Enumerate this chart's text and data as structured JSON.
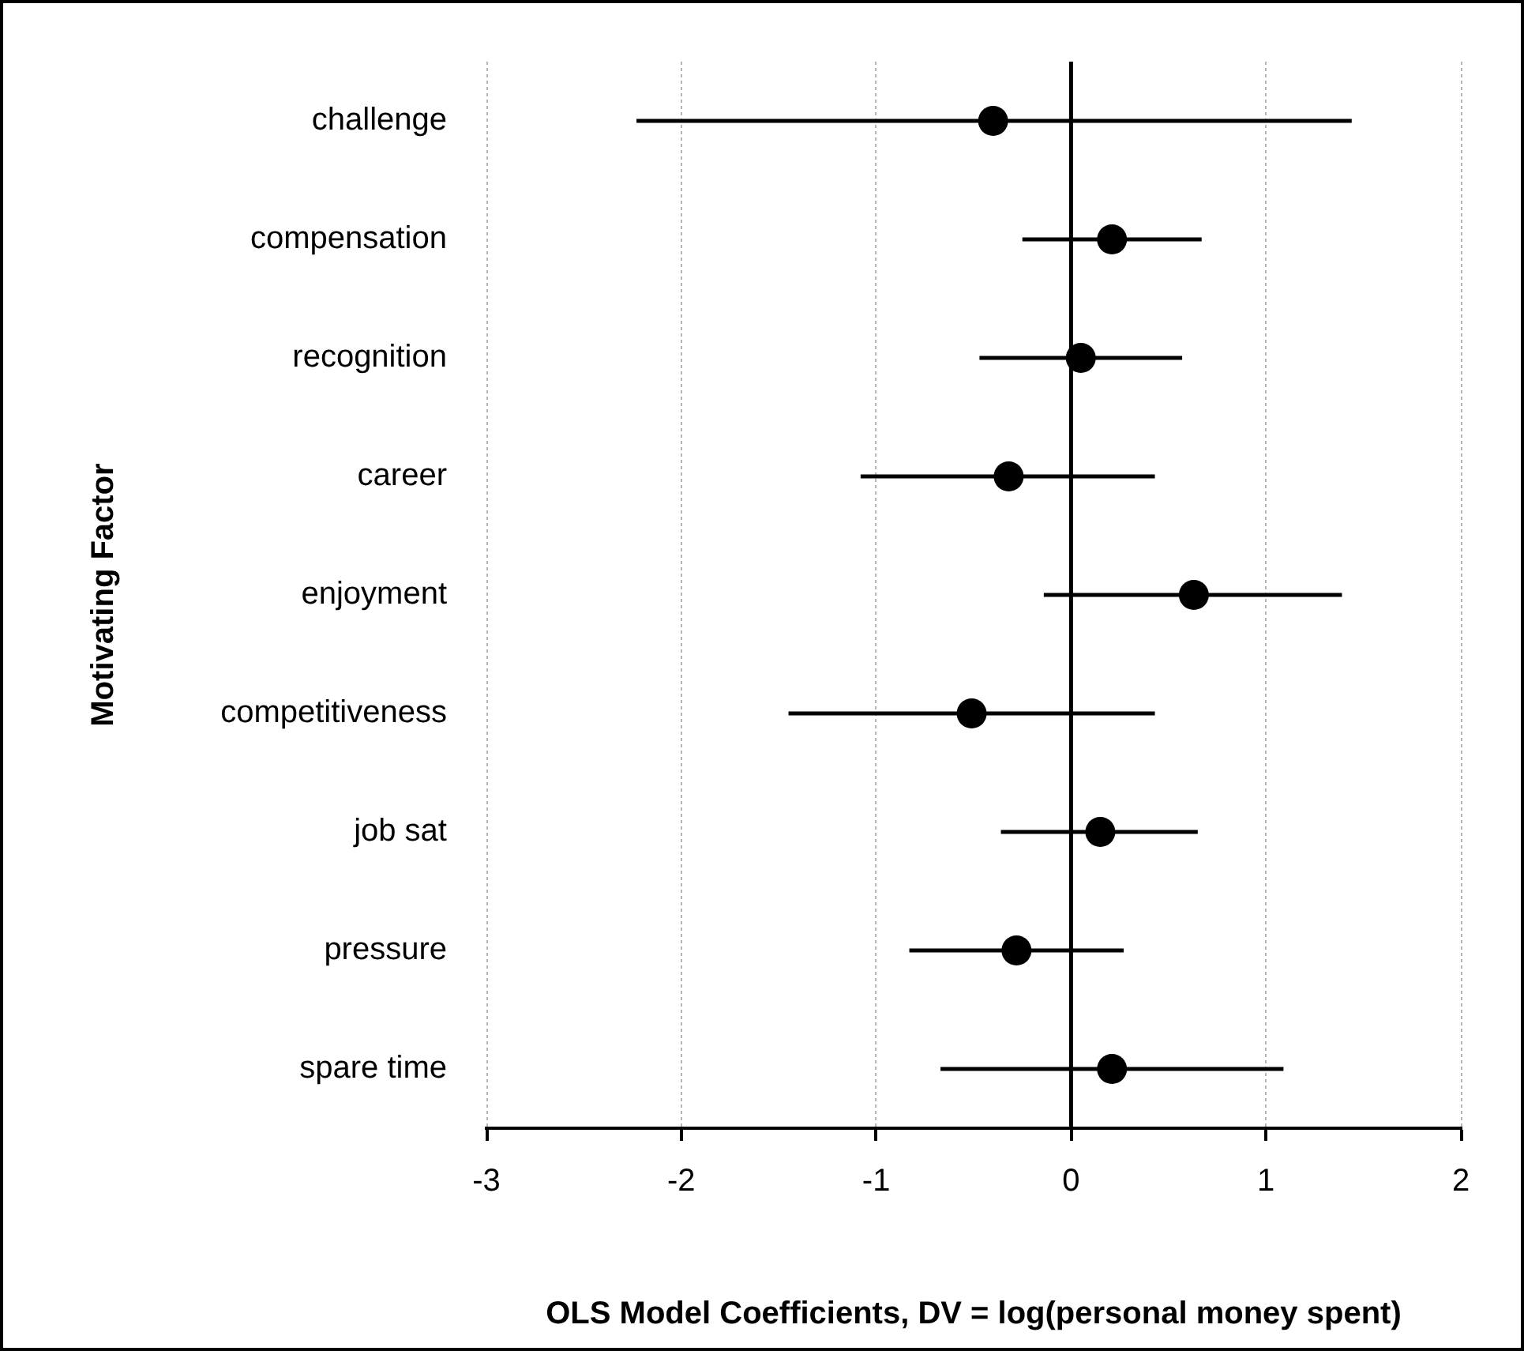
{
  "chart_data": {
    "type": "scatter",
    "orientation": "horizontal",
    "xlabel": "OLS Model Coefficients, DV = log(personal money spent)",
    "ylabel": "Motivating Factor",
    "categories": [
      "challenge",
      "compensation",
      "recognition",
      "career",
      "enjoyment",
      "competitiveness",
      "job sat",
      "pressure",
      "spare time"
    ],
    "series": [
      {
        "color": "#000000",
        "values": [
          -0.4,
          0.21,
          0.05,
          -0.32,
          0.63,
          -0.51,
          0.15,
          -0.28,
          0.21
        ],
        "errors": [
          [
            -2.23,
            1.44
          ],
          [
            -0.25,
            0.67
          ],
          [
            -0.47,
            0.57
          ],
          [
            -1.08,
            0.43
          ],
          [
            -0.14,
            1.39
          ],
          [
            -1.45,
            0.43
          ],
          [
            -0.36,
            0.65
          ],
          [
            -0.83,
            0.27
          ],
          [
            -0.67,
            1.09
          ]
        ]
      }
    ],
    "xlim": [
      -3,
      2
    ],
    "xticks": [
      -3,
      -2,
      -1,
      0,
      1,
      2
    ],
    "grid": "x",
    "marker": "circle",
    "ref_lines": [
      {
        "axis": "x",
        "value": 0,
        "color": "#000000"
      }
    ]
  }
}
